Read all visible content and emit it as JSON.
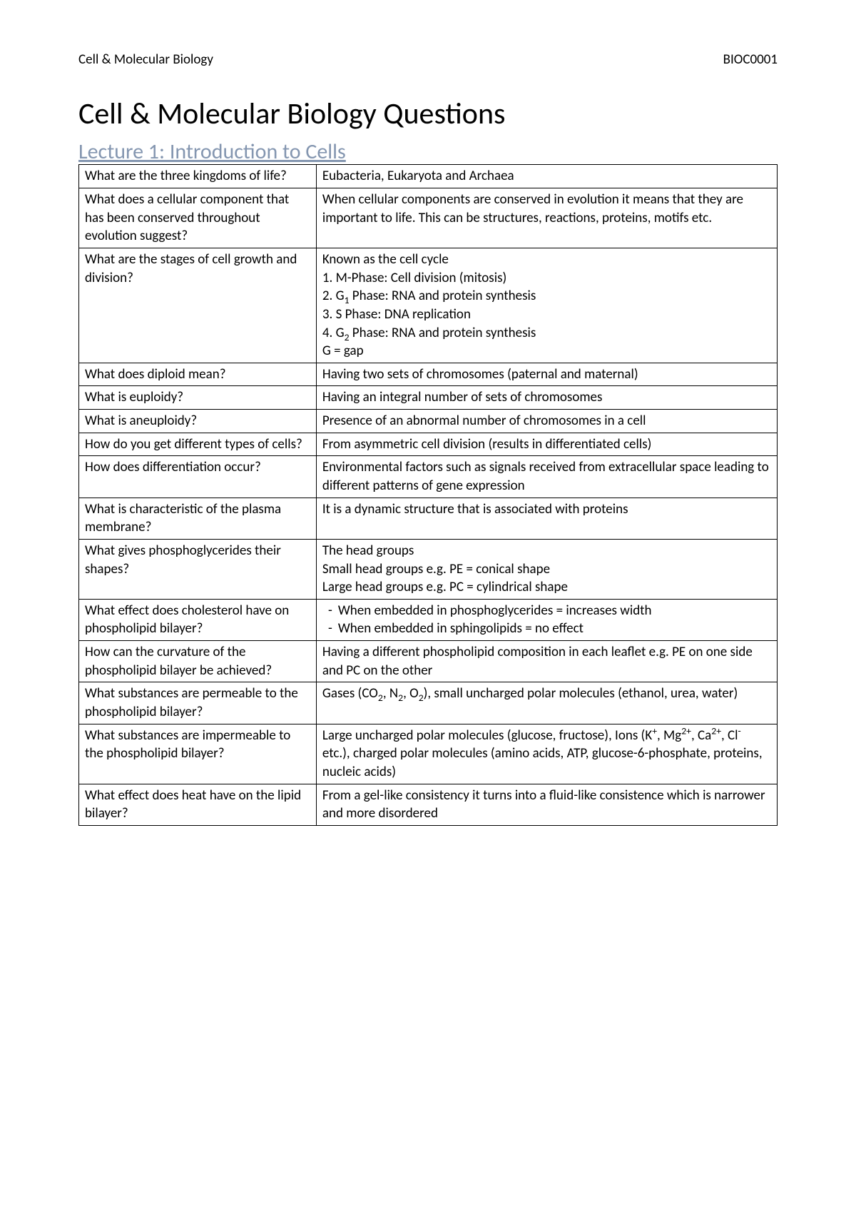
{
  "header": {
    "left": "Cell & Molecular Biology",
    "right": "BIOC0001"
  },
  "title": "Cell & Molecular Biology Questions",
  "section": "Lecture 1: Introduction to Cells",
  "colors": {
    "section_title": "#8496b0",
    "text": "#000000",
    "border": "#000000",
    "background": "#ffffff"
  },
  "typography": {
    "body_fontsize_pt": 14,
    "title_fontsize_pt": 32,
    "section_fontsize_pt": 22,
    "font_family": "Calibri"
  },
  "table": {
    "column_widths_pct": [
      34,
      66
    ],
    "rows": [
      {
        "q": "What are the three kingdoms of life?",
        "a": [
          {
            "type": "text",
            "text": "Eubacteria, Eukaryota and Archaea"
          }
        ]
      },
      {
        "q": "What does a cellular component that has been conserved throughout evolution suggest?",
        "a": [
          {
            "type": "text",
            "text": "When cellular components are conserved in evolution it means that they are important to life. This can be structures, reactions, proteins, motifs etc."
          }
        ]
      },
      {
        "q": "What are the stages of cell growth and division?",
        "a": [
          {
            "type": "text",
            "text": "Known as the cell cycle"
          },
          {
            "type": "text",
            "text": "1. M-Phase: Cell division (mitosis)"
          },
          {
            "type": "html",
            "html": "2. G<sub>1</sub> Phase: RNA and protein synthesis"
          },
          {
            "type": "text",
            "text": "3. S Phase: DNA replication"
          },
          {
            "type": "html",
            "html": "4. G<sub>2</sub> Phase: RNA and protein synthesis"
          },
          {
            "type": "text",
            "text": "G = gap"
          }
        ]
      },
      {
        "q": "What does diploid mean?",
        "a": [
          {
            "type": "text",
            "text": "Having two sets of chromosomes (paternal and maternal)"
          }
        ]
      },
      {
        "q": "What is euploidy?",
        "a": [
          {
            "type": "text",
            "text": "Having an integral number of sets of chromosomes"
          }
        ]
      },
      {
        "q": "What is aneuploidy?",
        "a": [
          {
            "type": "text",
            "text": "Presence of an abnormal number of chromosomes in a cell"
          }
        ]
      },
      {
        "q": "How do you get different types of cells?",
        "a": [
          {
            "type": "text",
            "text": "From asymmetric cell division (results in differentiated cells)"
          }
        ]
      },
      {
        "q": "How does differentiation occur?",
        "a": [
          {
            "type": "text",
            "text": "Environmental factors such as signals received from extracellular space leading to different patterns of gene expression"
          }
        ]
      },
      {
        "q": "What is characteristic of the plasma membrane?",
        "a": [
          {
            "type": "text",
            "text": "It is a dynamic structure that is associated with proteins"
          }
        ]
      },
      {
        "q": "What gives phosphoglycerides their shapes?",
        "a": [
          {
            "type": "text",
            "text": "The head groups"
          },
          {
            "type": "text",
            "text": "Small head groups e.g. PE = conical shape"
          },
          {
            "type": "text",
            "text": "Large head groups e.g. PC = cylindrical shape"
          }
        ]
      },
      {
        "q": "What effect does cholesterol have on phospholipid bilayer?",
        "a": [
          {
            "type": "bullet",
            "text": "When embedded in phosphoglycerides = increases width"
          },
          {
            "type": "bullet",
            "text": "When embedded in sphingolipids = no effect"
          }
        ]
      },
      {
        "q": "How can the curvature of the phospholipid bilayer be achieved?",
        "a": [
          {
            "type": "text",
            "text": "Having a different phospholipid composition in each leaflet e.g. PE on one side and PC on the other"
          }
        ]
      },
      {
        "q": "What substances are permeable to the phospholipid bilayer?",
        "a": [
          {
            "type": "html",
            "html": "Gases (CO<sub>2</sub>, N<sub>2</sub>, O<sub>2</sub>), small uncharged polar molecules (ethanol, urea, water)"
          }
        ]
      },
      {
        "q": "What substances are impermeable to the phospholipid bilayer?",
        "a": [
          {
            "type": "html",
            "html": "Large uncharged polar molecules (glucose, fructose), Ions (K<sup>+</sup>, Mg<sup>2+</sup>, Ca<sup>2+</sup>, Cl<sup>-</sup> etc.), charged polar molecules (amino acids, ATP, glucose-6-phosphate, proteins, nucleic acids)"
          }
        ]
      },
      {
        "q": "What effect does heat have on the lipid bilayer?",
        "a": [
          {
            "type": "text",
            "text": "From a gel-like consistency it turns into a fluid-like consistence which is narrower and more disordered"
          }
        ]
      }
    ]
  }
}
